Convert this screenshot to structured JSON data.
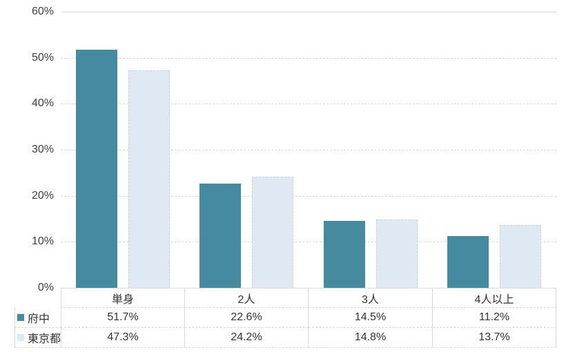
{
  "colors": {
    "grid": "#D9D9D9",
    "axis_text": "#404040",
    "table_text": "#333333",
    "light_bar_border": "#C9D3DE",
    "series_fuchu": "#468AA0",
    "series_tokyo": "#DEE9F4"
  },
  "chart_data": {
    "type": "bar",
    "title": "",
    "categories": [
      "単身",
      "2人",
      "3人",
      "4人以上"
    ],
    "series": [
      {
        "name": "府中",
        "color": "#468AA0",
        "values": [
          51.7,
          22.6,
          14.5,
          11.2
        ],
        "labels": [
          "51.7%",
          "22.6%",
          "14.5%",
          "11.2%"
        ]
      },
      {
        "name": "東京都",
        "color": "#DEE9F4",
        "values": [
          47.3,
          24.2,
          14.8,
          13.7
        ],
        "labels": [
          "47.3%",
          "24.2%",
          "14.8%",
          "13.7%"
        ]
      }
    ],
    "ylim": [
      0,
      60
    ],
    "yticks": [
      0,
      10,
      20,
      30,
      40,
      50,
      60
    ],
    "ytick_labels": [
      "0%",
      "10%",
      "20%",
      "30%",
      "40%",
      "50%",
      "60%"
    ],
    "grid": true,
    "legend_position": "table-left",
    "data_table": true
  }
}
